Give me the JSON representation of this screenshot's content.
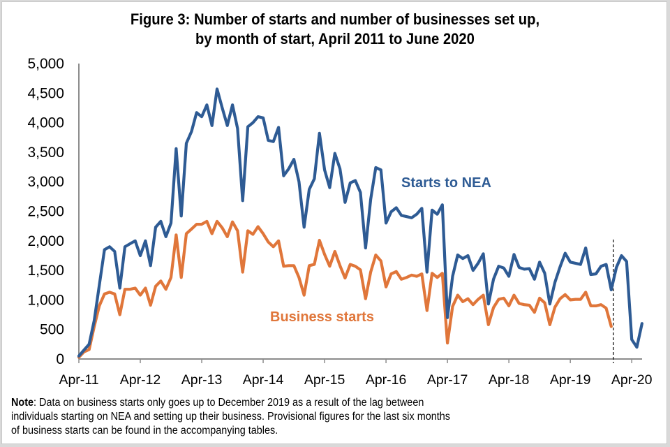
{
  "chart_data": {
    "type": "line",
    "title_lines": [
      "Figure 3: Number of starts and number of businesses set up,",
      "by month of start, April 2011 to June 2020"
    ],
    "xlabel": "",
    "ylabel": "",
    "ylim": [
      0,
      5000
    ],
    "yticks": [
      0,
      500,
      1000,
      1500,
      2000,
      2500,
      3000,
      3500,
      4000,
      4500,
      5000
    ],
    "ytick_labels": [
      "0",
      "500",
      "1,000",
      "1,500",
      "2,000",
      "2,500",
      "3,000",
      "3,500",
      "4,000",
      "4,500",
      "5,000"
    ],
    "x_start": "Apr-2011",
    "x_end": "Jun-2020",
    "x_tick_labels": [
      "Apr-11",
      "Apr-12",
      "Apr-13",
      "Apr-14",
      "Apr-15",
      "Apr-16",
      "Apr-17",
      "Apr-18",
      "Apr-19",
      "Apr-20"
    ],
    "x_tick_month_index": [
      0,
      12,
      24,
      36,
      48,
      60,
      72,
      84,
      96,
      108
    ],
    "grid": false,
    "legend": "inline labels",
    "annotations": [
      {
        "type": "dashed-vertical-line",
        "at_month_index": 104,
        "meaning": "end of business starts data (Dec-19)"
      }
    ],
    "series": [
      {
        "name": "Starts to NEA",
        "color": "#2e5b94",
        "label_position": "upper-right of data",
        "values": [
          50,
          150,
          250,
          650,
          1250,
          1850,
          1900,
          1820,
          1200,
          1900,
          1950,
          2000,
          1750,
          2000,
          1580,
          2230,
          2330,
          2070,
          2300,
          3560,
          2420,
          3650,
          3850,
          4170,
          4100,
          4300,
          3950,
          4570,
          4250,
          3950,
          4300,
          3900,
          2680,
          3930,
          4000,
          4100,
          4080,
          3700,
          3680,
          3920,
          3100,
          3220,
          3380,
          3000,
          2230,
          2870,
          3050,
          3820,
          3200,
          2900,
          3480,
          3220,
          2650,
          2980,
          3020,
          2820,
          1880,
          2700,
          3240,
          3200,
          2300,
          2490,
          2560,
          2430,
          2410,
          2390,
          2450,
          2550,
          1470,
          2520,
          2450,
          2610,
          700,
          1400,
          1760,
          1700,
          1750,
          1500,
          1620,
          1780,
          930,
          1350,
          1570,
          1540,
          1400,
          1770,
          1550,
          1520,
          1530,
          1350,
          1640,
          1450,
          930,
          1300,
          1560,
          1790,
          1640,
          1620,
          1600,
          1880,
          1430,
          1440,
          1570,
          1600,
          1170,
          1550,
          1750,
          1650,
          330,
          200,
          600
        ]
      },
      {
        "name": "Business starts",
        "color": "#e0763a",
        "label_position": "below data, centre",
        "values": [
          30,
          120,
          160,
          550,
          900,
          1100,
          1130,
          1100,
          750,
          1180,
          1180,
          1200,
          1080,
          1200,
          910,
          1230,
          1320,
          1180,
          1380,
          2100,
          1380,
          2120,
          2200,
          2280,
          2280,
          2330,
          2120,
          2330,
          2220,
          2070,
          2320,
          2170,
          1470,
          2170,
          2110,
          2240,
          2120,
          1980,
          1900,
          2000,
          1570,
          1580,
          1580,
          1380,
          1080,
          1580,
          1600,
          2010,
          1770,
          1570,
          1820,
          1580,
          1370,
          1600,
          1570,
          1510,
          1020,
          1470,
          1760,
          1660,
          1220,
          1440,
          1480,
          1350,
          1380,
          1420,
          1400,
          1440,
          820,
          1450,
          1380,
          1450,
          270,
          890,
          1080,
          970,
          1020,
          920,
          1010,
          1080,
          580,
          870,
          1010,
          1030,
          900,
          1080,
          940,
          920,
          910,
          790,
          1030,
          950,
          580,
          880,
          1020,
          1090,
          1000,
          1010,
          1010,
          1130,
          900,
          900,
          920,
          860,
          550
        ]
      }
    ]
  },
  "note": {
    "label": "Note",
    "lines": [
      ": Data on business starts only goes up to December 2019 as a result of the lag between",
      "individuals starting on NEA and setting up their business. Provisional figures for the last six months",
      "of business starts can be found in the accompanying tables."
    ]
  }
}
